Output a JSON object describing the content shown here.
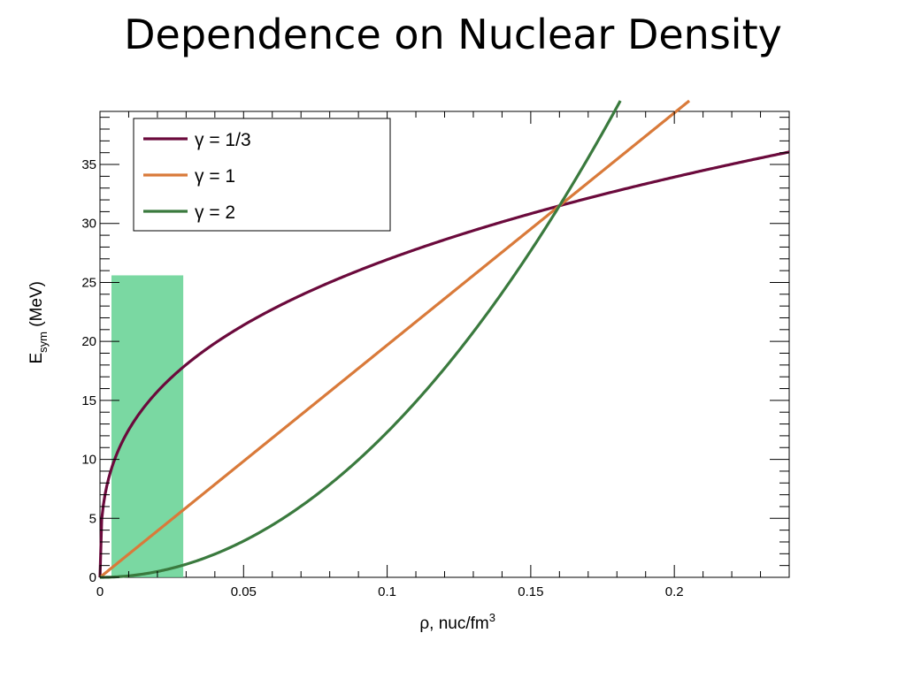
{
  "slide": {
    "title": "Dependence on Nuclear Density"
  },
  "chart_data": {
    "type": "line",
    "title": "",
    "xlabel": "ρ, nuc/fm",
    "xlabel_sup": "3",
    "ylabel": "E",
    "ylabel_sub": "sym",
    "ylabel_unit": " (MeV)",
    "xlim": [
      0,
      0.24
    ],
    "ylim": [
      0,
      39.5
    ],
    "x_ticks": [
      0,
      0.05,
      0.1,
      0.15,
      0.2
    ],
    "x_tick_labels": [
      "0",
      "0.05",
      "0.1",
      "0.15",
      "0.2"
    ],
    "y_ticks": [
      0,
      5,
      10,
      15,
      20,
      25,
      30,
      35
    ],
    "y_tick_labels": [
      "0",
      "5",
      "10",
      "15",
      "20",
      "25",
      "30",
      "35"
    ],
    "grid": false,
    "legend_position": "top-left",
    "rho0": 0.16,
    "e0": 31.5,
    "series": [
      {
        "name": "γ = 1/3",
        "gamma": 0.3333,
        "color": "#6b0a3c"
      },
      {
        "name": "γ = 1",
        "gamma": 1,
        "color": "#d97a3a"
      },
      {
        "name": "γ = 2",
        "gamma": 2,
        "color": "#3a7a3e"
      }
    ],
    "highlight_region": {
      "x_range": [
        0.004,
        0.029
      ],
      "y_range": [
        0,
        25.6
      ],
      "color": "#5dd08d"
    }
  }
}
